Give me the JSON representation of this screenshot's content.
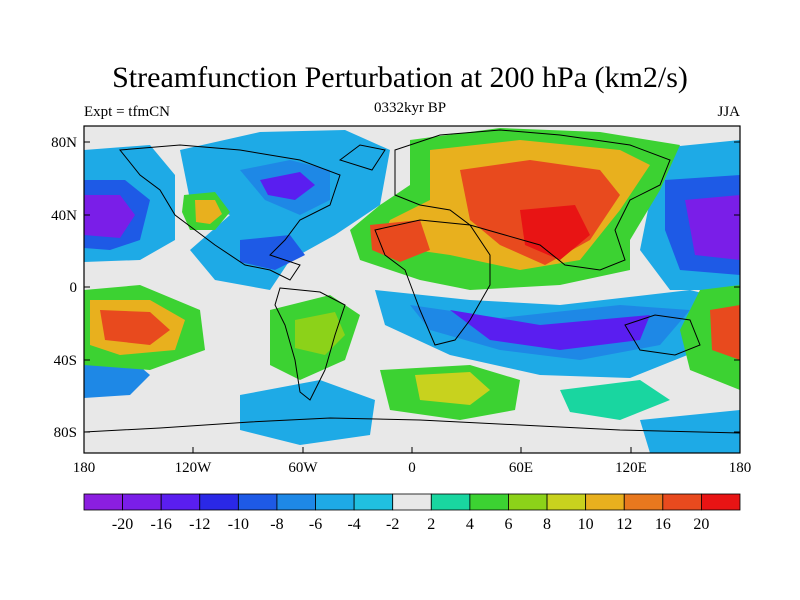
{
  "map": {
    "title": "Streamfunction Perturbation at 200 hPa (km2/s)",
    "left_label": "Expt = tfmCN",
    "center_label": "0332kyr BP",
    "right_label": "JJA",
    "lat_ticks": [
      "80N",
      "40N",
      "0",
      "40S",
      "80S"
    ],
    "lon_ticks": [
      "180",
      "120W",
      "60W",
      "0",
      "60E",
      "120E",
      "180"
    ]
  },
  "colorbar": {
    "labels": [
      "-20",
      "-16",
      "-12",
      "-10",
      "-8",
      "-6",
      "-4",
      "-2",
      "2",
      "4",
      "6",
      "8",
      "10",
      "12",
      "16",
      "20"
    ],
    "colors": [
      "#8b1ee0",
      "#7a1ee8",
      "#5a1ef0",
      "#2a28e6",
      "#1e5ae6",
      "#1e88e6",
      "#1eaae6",
      "#20c0e0",
      "#e8e8e8",
      "#19d6a0",
      "#3cd232",
      "#8cd219",
      "#c8d21e",
      "#e8b01e",
      "#e8781e",
      "#e84a1e",
      "#e81414"
    ]
  },
  "chart_data": {
    "type": "heatmap",
    "title": "Streamfunction Perturbation at 200 hPa (km2/s)",
    "subtitle": "0332kyr BP",
    "left_annotation": "Expt = tfmCN",
    "right_annotation": "JJA",
    "xlabel": "",
    "ylabel": "",
    "x_ticks": [
      "180",
      "120W",
      "60W",
      "0",
      "60E",
      "120E",
      "180"
    ],
    "y_ticks": [
      "80N",
      "40N",
      "0",
      "40S",
      "80S"
    ],
    "xlim": [
      -180,
      180
    ],
    "ylim": [
      -90,
      90
    ],
    "color_levels": [
      -20,
      -16,
      -12,
      -10,
      -8,
      -6,
      -4,
      -2,
      2,
      4,
      6,
      8,
      10,
      12,
      16,
      20
    ]
  }
}
